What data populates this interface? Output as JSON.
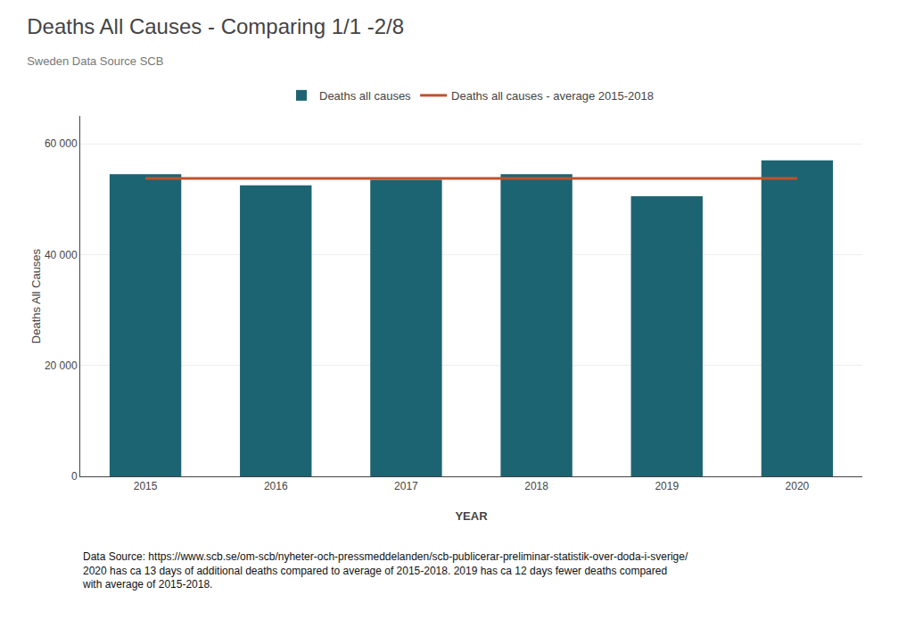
{
  "chart_data": {
    "type": "bar",
    "title": "Deaths All Causes - Comparing 1/1 -2/8",
    "subtitle": "Sweden Data Source SCB",
    "xlabel": "YEAR",
    "ylabel": "Deaths All Causes",
    "categories": [
      "2015",
      "2016",
      "2017",
      "2018",
      "2019",
      "2020"
    ],
    "series": [
      {
        "name": "Deaths all causes",
        "type": "bar",
        "color": "#1d6473",
        "values": [
          54500,
          52500,
          53500,
          54500,
          50500,
          57000
        ]
      },
      {
        "name": "Deaths all causes - average 2015-2018",
        "type": "line",
        "color": "#c0522b",
        "values": [
          53750,
          53750,
          53750,
          53750,
          53750,
          53750
        ]
      }
    ],
    "ylim": [
      0,
      65000
    ],
    "yticks": [
      0,
      {
        "value": 20000,
        "label": "20 000"
      },
      {
        "value": 40000,
        "label": "40 000"
      },
      {
        "value": 60000,
        "label": "60 000"
      }
    ],
    "grid": true,
    "legend": "top",
    "annotations": [
      "Data Source: https://www.scb.se/om-scb/nyheter-och-pressmeddelanden/scb-publicerar-preliminar-statistik-over-doda-i-sverige/\n2020 has ca 13 days of additional deaths compared to average of 2015-2018. 2019 has ca 12 days fewer deaths compared\nwith average of 2015-2018."
    ]
  }
}
